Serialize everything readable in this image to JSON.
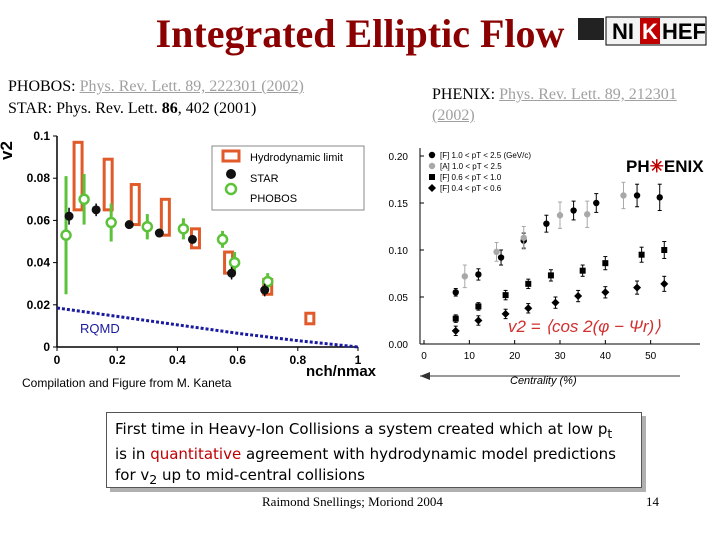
{
  "title": "Integrated Elliptic Flow",
  "logo": {
    "text_ni": "NI",
    "text_k": "K",
    "text_hef": "HEF"
  },
  "refs": {
    "phobos_label": "PHOBOS: ",
    "phobos_link": "Phys. Rev. Lett. 89, 222301 (2002)",
    "star_prefix": "STAR: Phys. Rev. Lett. ",
    "star_vol": "86",
    "star_suffix": ", 402 (2001)",
    "phenix_label": "PHENIX: ",
    "phenix_link_1": "Phys. Rev. Lett. 89, 212301",
    "phenix_link_2": "(2002)"
  },
  "colors": {
    "title": "#8b0000",
    "hydro": "#e05a2a",
    "phobos": "#5cc23a",
    "rqmd": "#1a1aa0",
    "highlight": "#c00000"
  },
  "chart_data": [
    {
      "type": "scatter",
      "ylabel": "v2",
      "xlabel": "nch/nmax",
      "xlim": [
        0,
        1
      ],
      "ylim": [
        0,
        0.1
      ],
      "xticks": [
        "0",
        "0.2",
        "0.4",
        "0.6",
        "0.8",
        "1"
      ],
      "yticks": [
        "0",
        "0.02",
        "0.04",
        "0.06",
        "0.08",
        "0.1"
      ],
      "legend": [
        "Hydrodynamic limit",
        "STAR",
        "PHOBOS"
      ],
      "annotation": "RQMD",
      "series": [
        {
          "name": "Hydrodynamic limit",
          "marker": "bar",
          "points": [
            [
              0.07,
              0.097,
              0.065
            ],
            [
              0.17,
              0.089,
              0.065
            ],
            [
              0.26,
              0.077,
              0.058
            ],
            [
              0.36,
              0.07,
              0.053
            ],
            [
              0.46,
              0.056,
              0.047
            ],
            [
              0.57,
              0.045,
              0.035
            ],
            [
              0.7,
              0.032,
              0.025
            ],
            [
              0.84,
              0.016,
              0.011
            ]
          ]
        },
        {
          "name": "STAR",
          "marker": "filled-circle",
          "points": [
            [
              0.04,
              0.062,
              0.004
            ],
            [
              0.13,
              0.065,
              0.003
            ],
            [
              0.24,
              0.058,
              0.002
            ],
            [
              0.34,
              0.054,
              0.002
            ],
            [
              0.45,
              0.051,
              0.002
            ],
            [
              0.58,
              0.035,
              0.003
            ],
            [
              0.69,
              0.027,
              0.003
            ]
          ]
        },
        {
          "name": "PHOBOS",
          "marker": "open-circle",
          "points": [
            [
              0.03,
              0.053,
              0.028
            ],
            [
              0.09,
              0.07,
              0.012
            ],
            [
              0.18,
              0.059,
              0.009
            ],
            [
              0.3,
              0.057,
              0.006
            ],
            [
              0.42,
              0.056,
              0.005
            ],
            [
              0.55,
              0.051,
              0.004
            ],
            [
              0.59,
              0.04,
              0.005
            ],
            [
              0.7,
              0.031,
              0.004
            ]
          ]
        },
        {
          "name": "RQMD",
          "marker": "dashed-line",
          "points": [
            [
              0.0,
              0.0185
            ],
            [
              0.2,
              0.0145
            ],
            [
              0.4,
              0.0105
            ],
            [
              0.6,
              0.0065
            ],
            [
              0.8,
              0.003
            ],
            [
              1.0,
              0.0
            ]
          ]
        }
      ]
    },
    {
      "type": "scatter",
      "xlabel": "Centrality (%)",
      "xlim": [
        0,
        60
      ],
      "ylim": [
        0,
        0.2
      ],
      "xticks": [
        "0",
        "10",
        "20",
        "30",
        "40",
        "50"
      ],
      "yticks": [
        "0.00",
        "0.05",
        "0.10",
        "0.15",
        "0.20"
      ],
      "legend": [
        "[F] 1.0 < pT < 2.5 (GeV/c)",
        "[A] 1.0 < pT < 2.5",
        "[F] 0.6 < pT < 1.0",
        "[F] 0.4 < pT < 0.6"
      ],
      "logo_ph": "PH",
      "logo_enix": "ENIX",
      "formula": "v2 = ⟨cos 2(φ − Ψr)⟩",
      "series": [
        {
          "name": "[F] 1.0 < pT < 2.5 (GeV/c)",
          "marker": "filled-circle",
          "color": "#000000",
          "points": [
            [
              7,
              0.055,
              0.004
            ],
            [
              12,
              0.074,
              0.006
            ],
            [
              17,
              0.092,
              0.008
            ],
            [
              22,
              0.11,
              0.008
            ],
            [
              27,
              0.128,
              0.009
            ],
            [
              33,
              0.142,
              0.01
            ],
            [
              38,
              0.15,
              0.01
            ],
            [
              47,
              0.158,
              0.012
            ],
            [
              52,
              0.156,
              0.014
            ]
          ]
        },
        {
          "name": "[A] 1.0 < pT < 2.5",
          "marker": "filled-circle",
          "color": "#a8a8a8",
          "points": [
            [
              9,
              0.072,
              0.012
            ],
            [
              16,
              0.098,
              0.01
            ],
            [
              22,
              0.113,
              0.012
            ],
            [
              30,
              0.137,
              0.014
            ],
            [
              36,
              0.138,
              0.014
            ],
            [
              44,
              0.158,
              0.014
            ]
          ]
        },
        {
          "name": "[F] 0.6 < pT < 1.0",
          "marker": "filled-square",
          "color": "#000000",
          "points": [
            [
              7,
              0.027,
              0.004
            ],
            [
              12,
              0.04,
              0.004
            ],
            [
              18,
              0.052,
              0.005
            ],
            [
              23,
              0.064,
              0.005
            ],
            [
              28,
              0.073,
              0.006
            ],
            [
              35,
              0.078,
              0.006
            ],
            [
              40,
              0.086,
              0.007
            ],
            [
              48,
              0.095,
              0.008
            ],
            [
              53,
              0.1,
              0.009
            ]
          ]
        },
        {
          "name": "[F] 0.4 < pT < 0.6",
          "marker": "filled-diamond",
          "color": "#000000",
          "points": [
            [
              7,
              0.014,
              0.005
            ],
            [
              12,
              0.025,
              0.005
            ],
            [
              18,
              0.032,
              0.005
            ],
            [
              23,
              0.038,
              0.005
            ],
            [
              29,
              0.044,
              0.006
            ],
            [
              34,
              0.051,
              0.006
            ],
            [
              40,
              0.055,
              0.006
            ],
            [
              47,
              0.06,
              0.007
            ],
            [
              53,
              0.064,
              0.008
            ]
          ]
        }
      ]
    }
  ],
  "credit": "Compilation and Figure from M. Kaneta",
  "conclusion": {
    "line1_a": "First time in Heavy-Ion Collisions a system created which at low p",
    "line1_sub": "t",
    "line2_a": "is in ",
    "line2_hl": "quantitative",
    "line2_b": " agreement with hydrodynamic model predictions",
    "line3_a": "for v",
    "line3_sub": "2",
    "line3_b": " up to mid-central collisions"
  },
  "footer": "Raimond Snellings; Moriond 2004",
  "page_number": "14"
}
